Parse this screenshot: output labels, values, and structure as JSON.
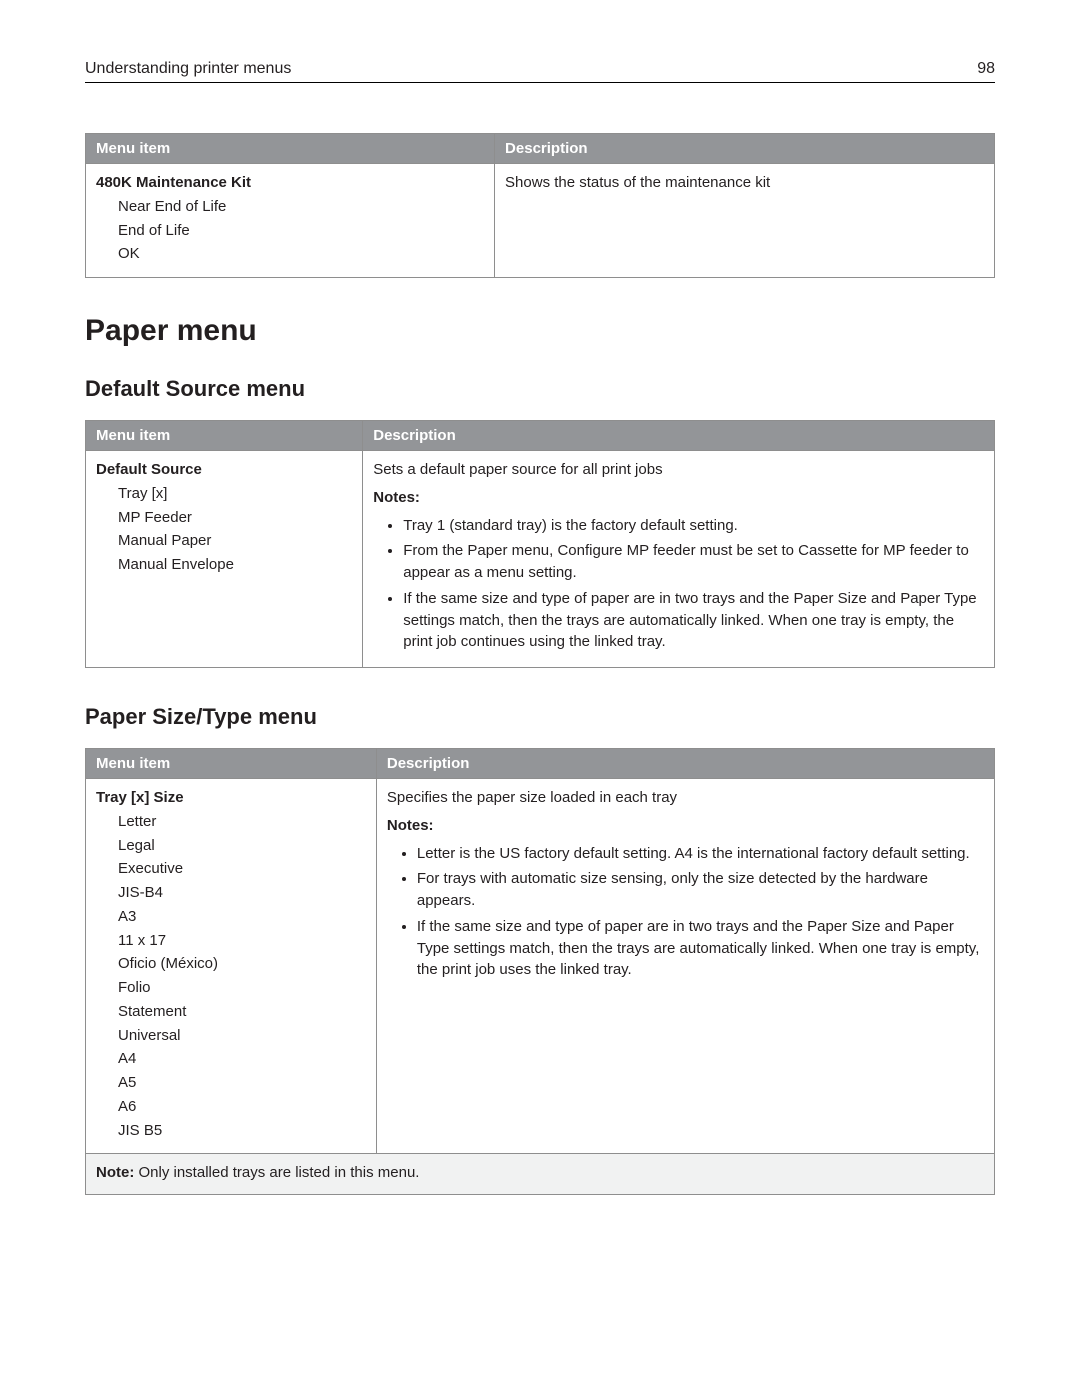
{
  "header": {
    "title": "Understanding printer menus",
    "page_number": "98"
  },
  "table1": {
    "cols": {
      "menu": "Menu item",
      "desc": "Description"
    },
    "row": {
      "title": "480K Maintenance Kit",
      "values": [
        "Near End of Life",
        "End of Life",
        "OK"
      ],
      "desc": "Shows the status of the maintenance kit"
    }
  },
  "section_heading": "Paper menu",
  "subsection1": "Default Source menu",
  "table2": {
    "cols": {
      "menu": "Menu item",
      "desc": "Description"
    },
    "row": {
      "title": "Default Source",
      "values": [
        "Tray [x]",
        "MP Feeder",
        "Manual Paper",
        "Manual Envelope"
      ],
      "desc_intro": "Sets a default paper source for all print jobs",
      "notes_label": "Notes:",
      "notes": [
        "Tray 1 (standard tray) is the factory default setting.",
        "From the Paper menu, Configure MP feeder must be set to Cassette for MP feeder to appear as a menu setting.",
        "If the same size and type of paper are in two trays and the Paper Size and Paper Type settings match, then the trays are automatically linked. When one tray is empty, the print job continues using the linked tray."
      ]
    }
  },
  "subsection2": "Paper Size/Type menu",
  "table3": {
    "cols": {
      "menu": "Menu item",
      "desc": "Description"
    },
    "row": {
      "title": "Tray [x] Size",
      "values": [
        "Letter",
        "Legal",
        "Executive",
        "JIS-B4",
        "A3",
        "11 x 17",
        "Oficio (México)",
        "Folio",
        "Statement",
        "Universal",
        "A4",
        "A5",
        "A6",
        "JIS B5"
      ],
      "desc_intro": "Specifies the paper size loaded in each tray",
      "notes_label": "Notes:",
      "notes": [
        "Letter is the US factory default setting. A4 is the international factory default setting.",
        "For trays with automatic size sensing, only the size detected by the hardware appears.",
        "If the same size and type of paper are in two trays and the Paper Size and Paper Type settings match, then the trays are automatically linked. When one tray is empty, the print job uses the linked tray."
      ]
    },
    "footnote": {
      "bold": "Note:",
      "text": " Only installed trays are listed in this menu."
    }
  },
  "colors": {
    "header_bg": "#939598",
    "header_fg": "#ffffff",
    "border": "#8e8e8e",
    "footnote_bg": "#f1f2f2",
    "text": "#231f20"
  }
}
